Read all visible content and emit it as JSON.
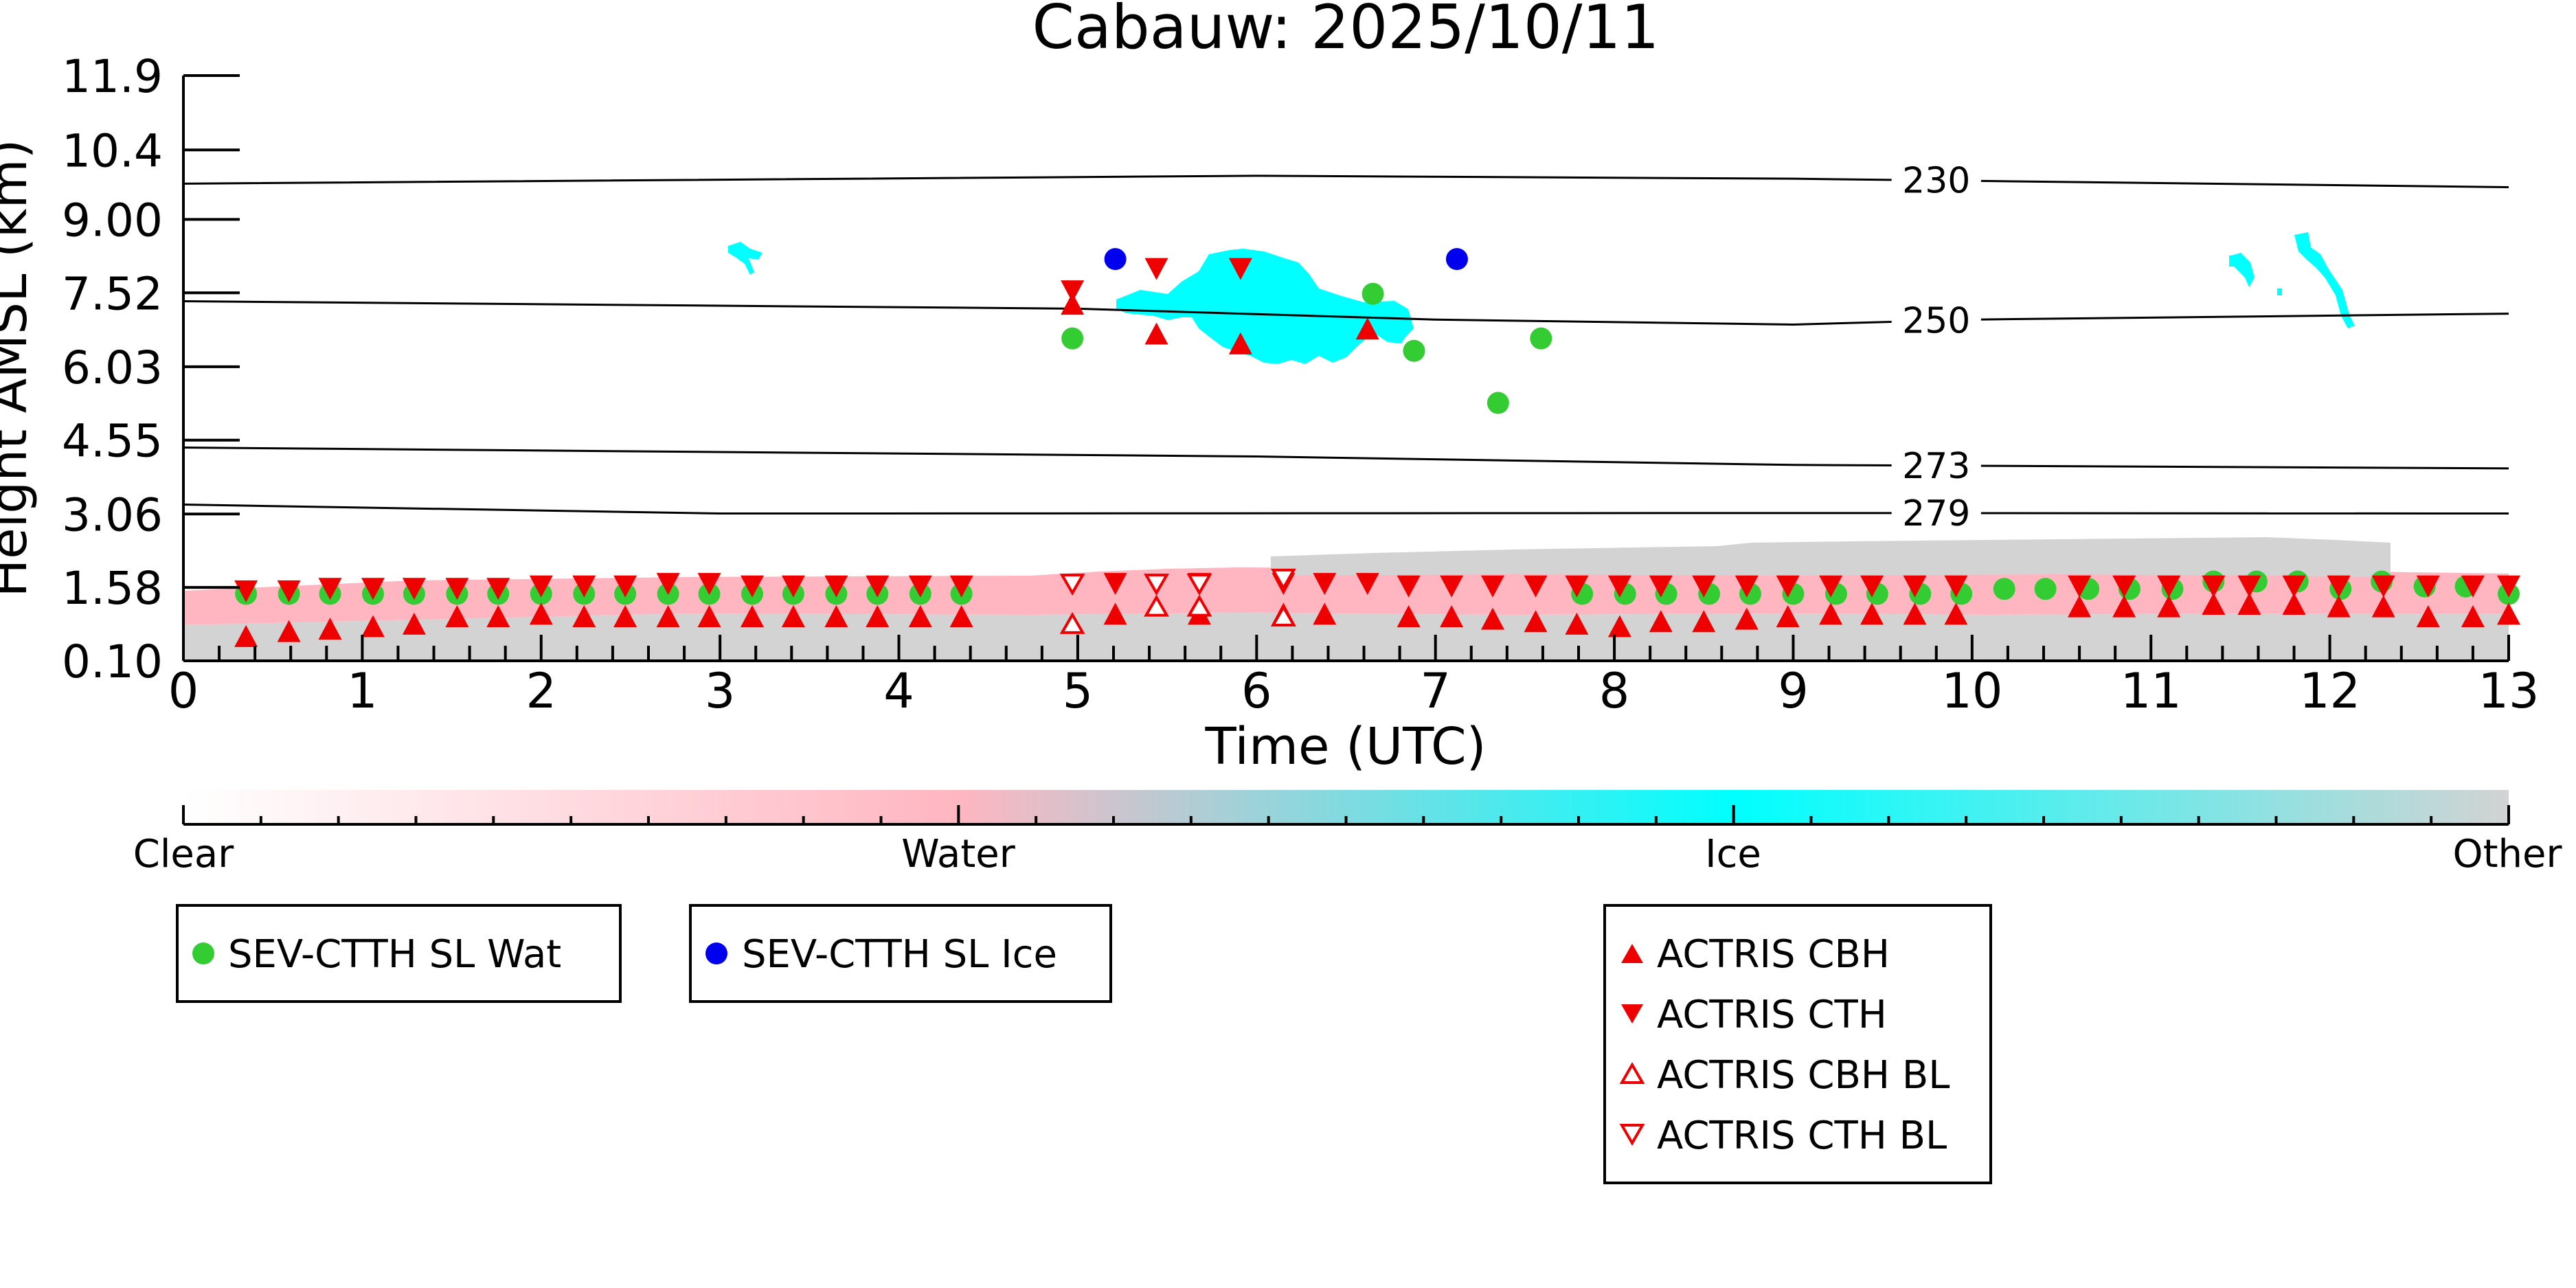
{
  "chart_data": {
    "type": "scatter",
    "title": "Cabauw: 2025/10/11",
    "xlabel": "Time (UTC)",
    "ylabel": "Height AMSL (km)",
    "xlim": [
      0,
      13
    ],
    "ylim": [
      0.1,
      11.9
    ],
    "x_ticks": [
      "0",
      "1",
      "2",
      "3",
      "4",
      "5",
      "6",
      "7",
      "8",
      "9",
      "10",
      "11",
      "12",
      "13"
    ],
    "y_ticks": [
      "0.10",
      "1.58",
      "3.06",
      "4.55",
      "6.03",
      "7.52",
      "9.00",
      "10.4",
      "11.9"
    ],
    "isotherms": [
      {
        "label": "230",
        "points": [
          [
            0,
            9.72
          ],
          [
            6,
            9.88
          ],
          [
            9,
            9.82
          ],
          [
            13,
            9.65
          ]
        ]
      },
      {
        "label": "250",
        "points": [
          [
            0,
            7.35
          ],
          [
            5,
            7.2
          ],
          [
            7,
            6.98
          ],
          [
            9,
            6.88
          ],
          [
            10,
            6.98
          ],
          [
            13,
            7.1
          ]
        ]
      },
      {
        "label": "273",
        "points": [
          [
            0,
            4.4
          ],
          [
            6,
            4.22
          ],
          [
            9,
            4.05
          ],
          [
            13,
            3.98
          ]
        ]
      },
      {
        "label": "279",
        "points": [
          [
            0,
            3.25
          ],
          [
            3,
            3.07
          ],
          [
            9,
            3.08
          ],
          [
            13,
            3.07
          ]
        ]
      }
    ],
    "series": [
      {
        "name": "SEV-CTTH SL Wat",
        "color": "#33cc33",
        "marker": "circle",
        "x": [
          0.35,
          0.59,
          0.82,
          1.06,
          1.29,
          1.53,
          1.76,
          2.0,
          2.24,
          2.47,
          2.71,
          2.94,
          3.18,
          3.41,
          3.65,
          3.88,
          4.12,
          4.35,
          4.97,
          6.65,
          6.88,
          7.35,
          7.59,
          7.82,
          8.06,
          8.29,
          8.53,
          8.76,
          9.0,
          9.24,
          9.47,
          9.71,
          9.94,
          10.18,
          10.41,
          10.65,
          10.88,
          11.12,
          11.35,
          11.59,
          11.82,
          12.06,
          12.29,
          12.53,
          12.76,
          13.0
        ],
        "y": [
          1.45,
          1.45,
          1.45,
          1.45,
          1.45,
          1.45,
          1.45,
          1.45,
          1.45,
          1.45,
          1.45,
          1.45,
          1.45,
          1.45,
          1.45,
          1.45,
          1.45,
          1.45,
          6.6,
          7.5,
          6.35,
          5.3,
          6.6,
          1.45,
          1.45,
          1.45,
          1.45,
          1.45,
          1.45,
          1.45,
          1.45,
          1.45,
          1.45,
          1.55,
          1.55,
          1.55,
          1.55,
          1.55,
          1.7,
          1.7,
          1.7,
          1.55,
          1.7,
          1.6,
          1.6,
          1.45
        ]
      },
      {
        "name": "SEV-CTTH SL Ice",
        "color": "#0000ee",
        "marker": "circle",
        "x": [
          5.21,
          7.12
        ],
        "y": [
          8.2,
          8.2
        ]
      },
      {
        "name": "ACTRIS CBH",
        "color": "#ee0000",
        "marker": "triangle-up",
        "x": [
          0.35,
          0.59,
          0.82,
          1.06,
          1.29,
          1.53,
          1.76,
          2.0,
          2.24,
          2.47,
          2.71,
          2.94,
          3.18,
          3.41,
          3.65,
          3.88,
          4.12,
          4.35,
          4.97,
          5.21,
          5.44,
          5.68,
          5.91,
          6.15,
          6.38,
          6.62,
          6.85,
          7.09,
          7.32,
          7.56,
          7.79,
          8.03,
          8.26,
          8.5,
          8.74,
          8.97,
          9.21,
          9.44,
          9.68,
          9.91,
          10.6,
          10.85,
          11.1,
          11.35,
          11.55,
          11.8,
          12.05,
          12.3,
          12.55,
          12.8,
          13.0
        ],
        "y": [
          0.6,
          0.7,
          0.75,
          0.8,
          0.85,
          1.0,
          1.0,
          1.05,
          1.0,
          1.0,
          1.0,
          1.0,
          1.0,
          1.0,
          1.0,
          1.0,
          1.0,
          1.0,
          7.3,
          1.05,
          6.7,
          1.05,
          6.5,
          1.05,
          1.05,
          6.8,
          1.0,
          1.0,
          0.95,
          0.9,
          0.85,
          0.8,
          0.9,
          0.9,
          0.95,
          1.0,
          1.05,
          1.05,
          1.05,
          1.05,
          1.2,
          1.2,
          1.2,
          1.25,
          1.25,
          1.25,
          1.2,
          1.2,
          1.0,
          1.0,
          1.05
        ]
      },
      {
        "name": "ACTRIS CTH",
        "color": "#ee0000",
        "marker": "triangle-down",
        "x": [
          0.35,
          0.59,
          0.82,
          1.06,
          1.29,
          1.53,
          1.76,
          2.0,
          2.24,
          2.47,
          2.71,
          2.94,
          3.18,
          3.41,
          3.65,
          3.88,
          4.12,
          4.35,
          4.97,
          5.21,
          5.44,
          5.68,
          5.91,
          6.15,
          6.38,
          6.62,
          6.85,
          7.09,
          7.32,
          7.56,
          7.79,
          8.03,
          8.26,
          8.5,
          8.74,
          8.97,
          9.21,
          9.44,
          9.68,
          9.91,
          10.6,
          10.85,
          11.1,
          11.35,
          11.55,
          11.8,
          12.05,
          12.3,
          12.55,
          12.8,
          13.0
        ],
        "y": [
          1.5,
          1.5,
          1.55,
          1.55,
          1.55,
          1.55,
          1.55,
          1.6,
          1.6,
          1.6,
          1.65,
          1.65,
          1.6,
          1.6,
          1.6,
          1.6,
          1.6,
          1.6,
          7.55,
          1.65,
          8.0,
          1.65,
          8.0,
          1.65,
          1.65,
          1.65,
          1.6,
          1.6,
          1.6,
          1.6,
          1.6,
          1.6,
          1.6,
          1.6,
          1.6,
          1.6,
          1.6,
          1.6,
          1.6,
          1.6,
          1.6,
          1.6,
          1.6,
          1.6,
          1.6,
          1.6,
          1.6,
          1.6,
          1.6,
          1.6,
          1.6
        ]
      },
      {
        "name": "ACTRIS CBH BL",
        "color": "#ee0000",
        "marker": "triangle-up-open",
        "x": [
          4.97,
          5.44,
          5.68,
          6.15
        ],
        "y": [
          0.85,
          1.2,
          1.2,
          1.0
        ]
      },
      {
        "name": "ACTRIS CTH BL",
        "color": "#ee0000",
        "marker": "triangle-down-open",
        "x": [
          4.97,
          5.44,
          5.68,
          6.15
        ],
        "y": [
          1.65,
          1.65,
          1.65,
          1.75
        ]
      }
    ],
    "colorbar": {
      "labels": [
        "Clear",
        "Water",
        "Ice",
        "Other"
      ],
      "colors": [
        "#ffffff",
        "#ffb6c1",
        "#00ffff",
        "#d3d3d3"
      ]
    },
    "legends": [
      [
        "SEV-CTTH SL Wat"
      ],
      [
        "SEV-CTTH SL Ice"
      ],
      [
        "ACTRIS CBH",
        "ACTRIS CTH",
        "ACTRIS CBH BL",
        "ACTRIS CTH BL"
      ]
    ]
  }
}
